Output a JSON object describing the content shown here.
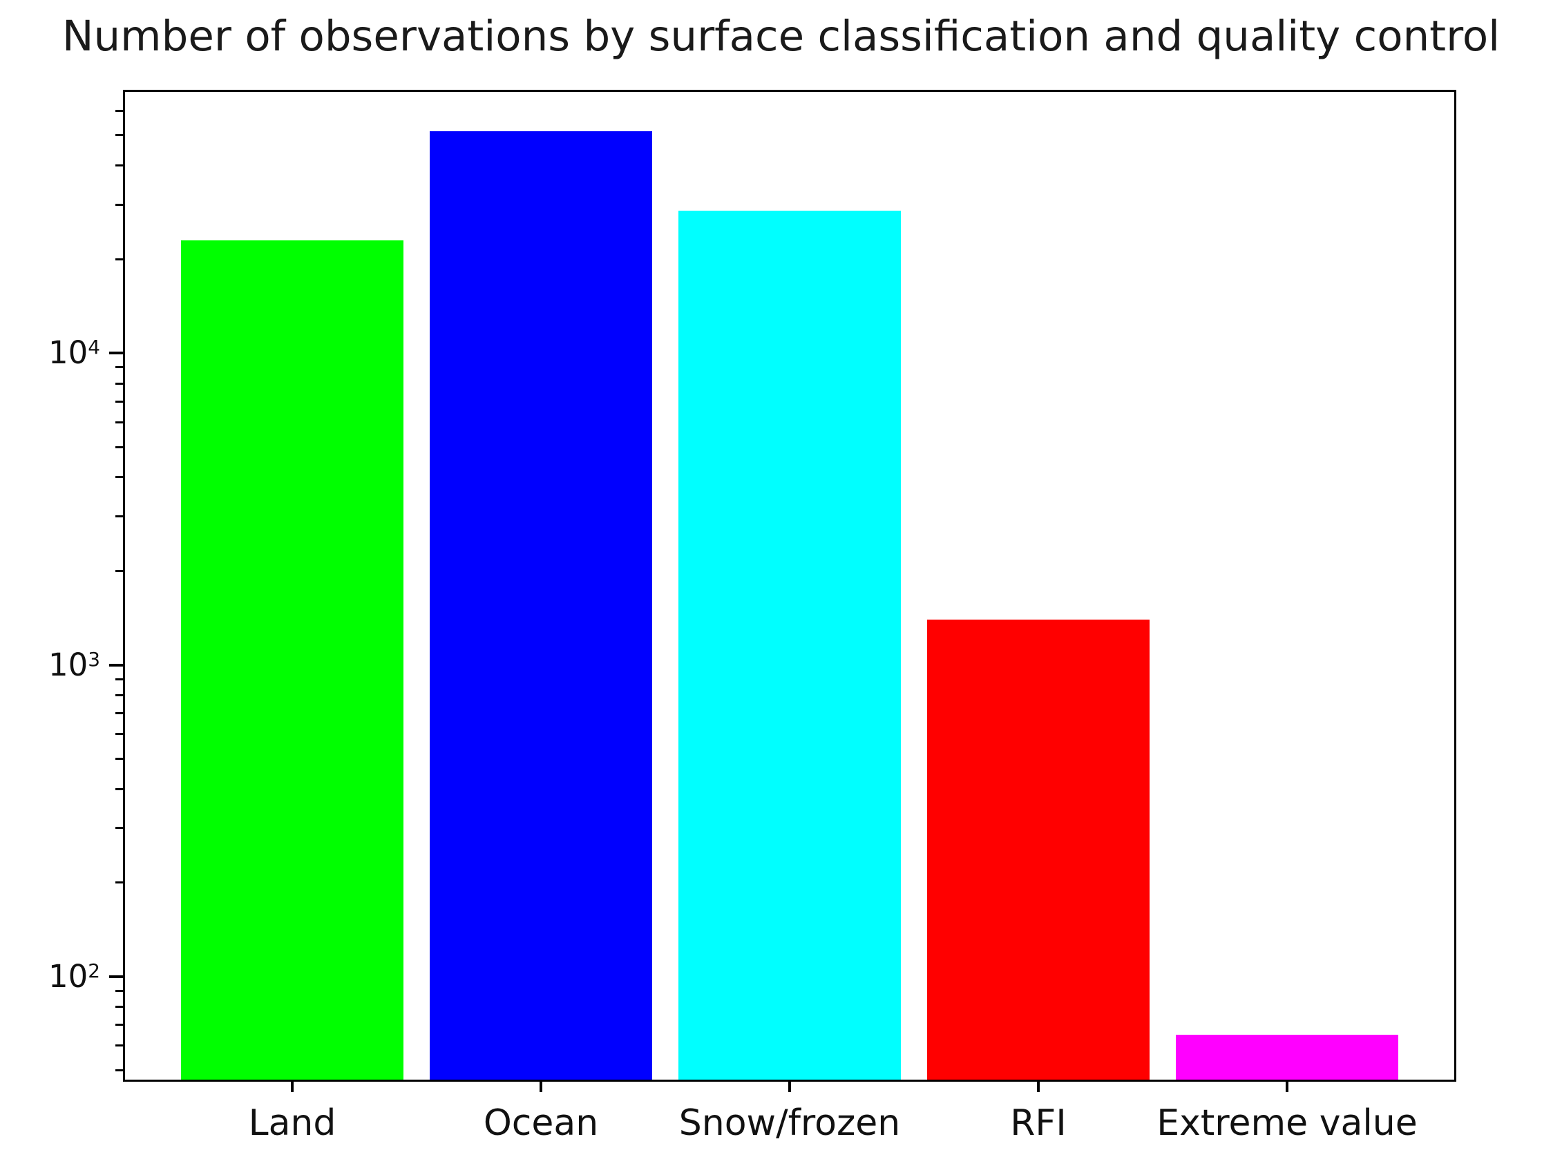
{
  "title": "Number of observations by surface classification and quality control",
  "chart_data": {
    "type": "bar",
    "title": "Number of observations by surface classification and quality control",
    "categories": [
      "Land",
      "Ocean",
      "Snow/frozen",
      "RFI",
      "Extreme value"
    ],
    "values": [
      23000,
      51500,
      28700,
      1400,
      65
    ],
    "bar_colors": [
      "#00ff00",
      "#0000ff",
      "#00ffff",
      "#ff0000",
      "#ff00ff"
    ],
    "yscale": "log",
    "ylim": [
      46,
      70000
    ],
    "yticks": [
      {
        "value": 100,
        "base": "10",
        "exponent": "2"
      },
      {
        "value": 1000,
        "base": "10",
        "exponent": "3"
      },
      {
        "value": 10000,
        "base": "10",
        "exponent": "4"
      }
    ],
    "xlabel": "",
    "ylabel": "",
    "grid": false,
    "legend": null,
    "frame_color": "#000000",
    "text_color": "#111111",
    "background": "#ffffff"
  }
}
